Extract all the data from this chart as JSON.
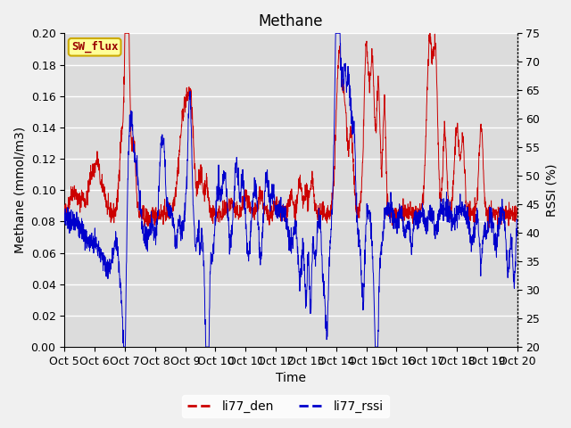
{
  "title": "Methane",
  "xlabel": "Time",
  "ylabel_left": "Methane (mmol/m3)",
  "ylabel_right": "RSSI (%)",
  "legend_label1": "li77_den",
  "legend_label2": "li77_rssi",
  "sw_flux_label": "SW_flux",
  "ylim_left": [
    0.0,
    0.2
  ],
  "ylim_right": [
    20,
    75
  ],
  "xtick_labels": [
    "Oct 5",
    "Oct 6",
    "Oct 7",
    "Oct 8",
    "Oct 9",
    "Oct 10",
    "Oct 11",
    "Oct 12",
    "Oct 13",
    "Oct 14",
    "Oct 15",
    "Oct 16",
    "Oct 17",
    "Oct 18",
    "Oct 19",
    "Oct 20"
  ],
  "plot_bg_color": "#dcdcdc",
  "fig_bg_color": "#f0f0f0",
  "line_color_red": "#cc0000",
  "line_color_blue": "#0000cc",
  "grid_color": "#ffffff",
  "sw_flux_bg": "#ffff99",
  "sw_flux_border": "#ccaa00",
  "sw_flux_text": "#990000",
  "title_fontsize": 12,
  "axis_label_fontsize": 10,
  "tick_fontsize": 9,
  "legend_fontsize": 10
}
